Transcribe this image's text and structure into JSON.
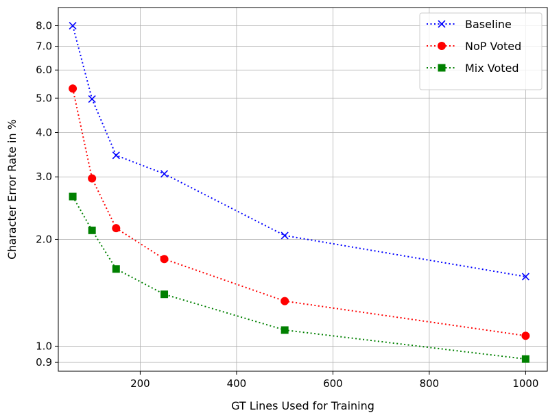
{
  "chart_data": {
    "type": "line",
    "xlabel": "GT Lines Used for Training",
    "ylabel": "Character Error Rate in %",
    "y_scale": "log",
    "xlim": [
      30,
      1045
    ],
    "ylim": [
      0.85,
      9.0
    ],
    "x_ticks": [
      200,
      400,
      600,
      800,
      1000
    ],
    "y_ticks": [
      0.9,
      1.0,
      2.0,
      3.0,
      4.0,
      5.0,
      6.0,
      7.0,
      8.0
    ],
    "y_tick_labels": [
      "0.9",
      "1.0",
      "2.0",
      "3.0",
      "4.0",
      "5.0",
      "6.0",
      "7.0",
      "8.0"
    ],
    "grid": true,
    "legend_position": "top-right",
    "x": [
      60,
      100,
      150,
      250,
      500,
      1000
    ],
    "series": [
      {
        "name": "Baseline",
        "color": "#0000ff",
        "marker": "x",
        "values": [
          8.0,
          4.97,
          3.45,
          3.06,
          2.05,
          1.57
        ]
      },
      {
        "name": "NoP Voted",
        "color": "#ff0000",
        "marker": "circle",
        "values": [
          5.32,
          2.97,
          2.15,
          1.76,
          1.34,
          1.07
        ]
      },
      {
        "name": "Mix Voted",
        "color": "#008000",
        "marker": "square",
        "values": [
          2.64,
          2.12,
          1.65,
          1.4,
          1.11,
          0.92
        ]
      }
    ]
  }
}
